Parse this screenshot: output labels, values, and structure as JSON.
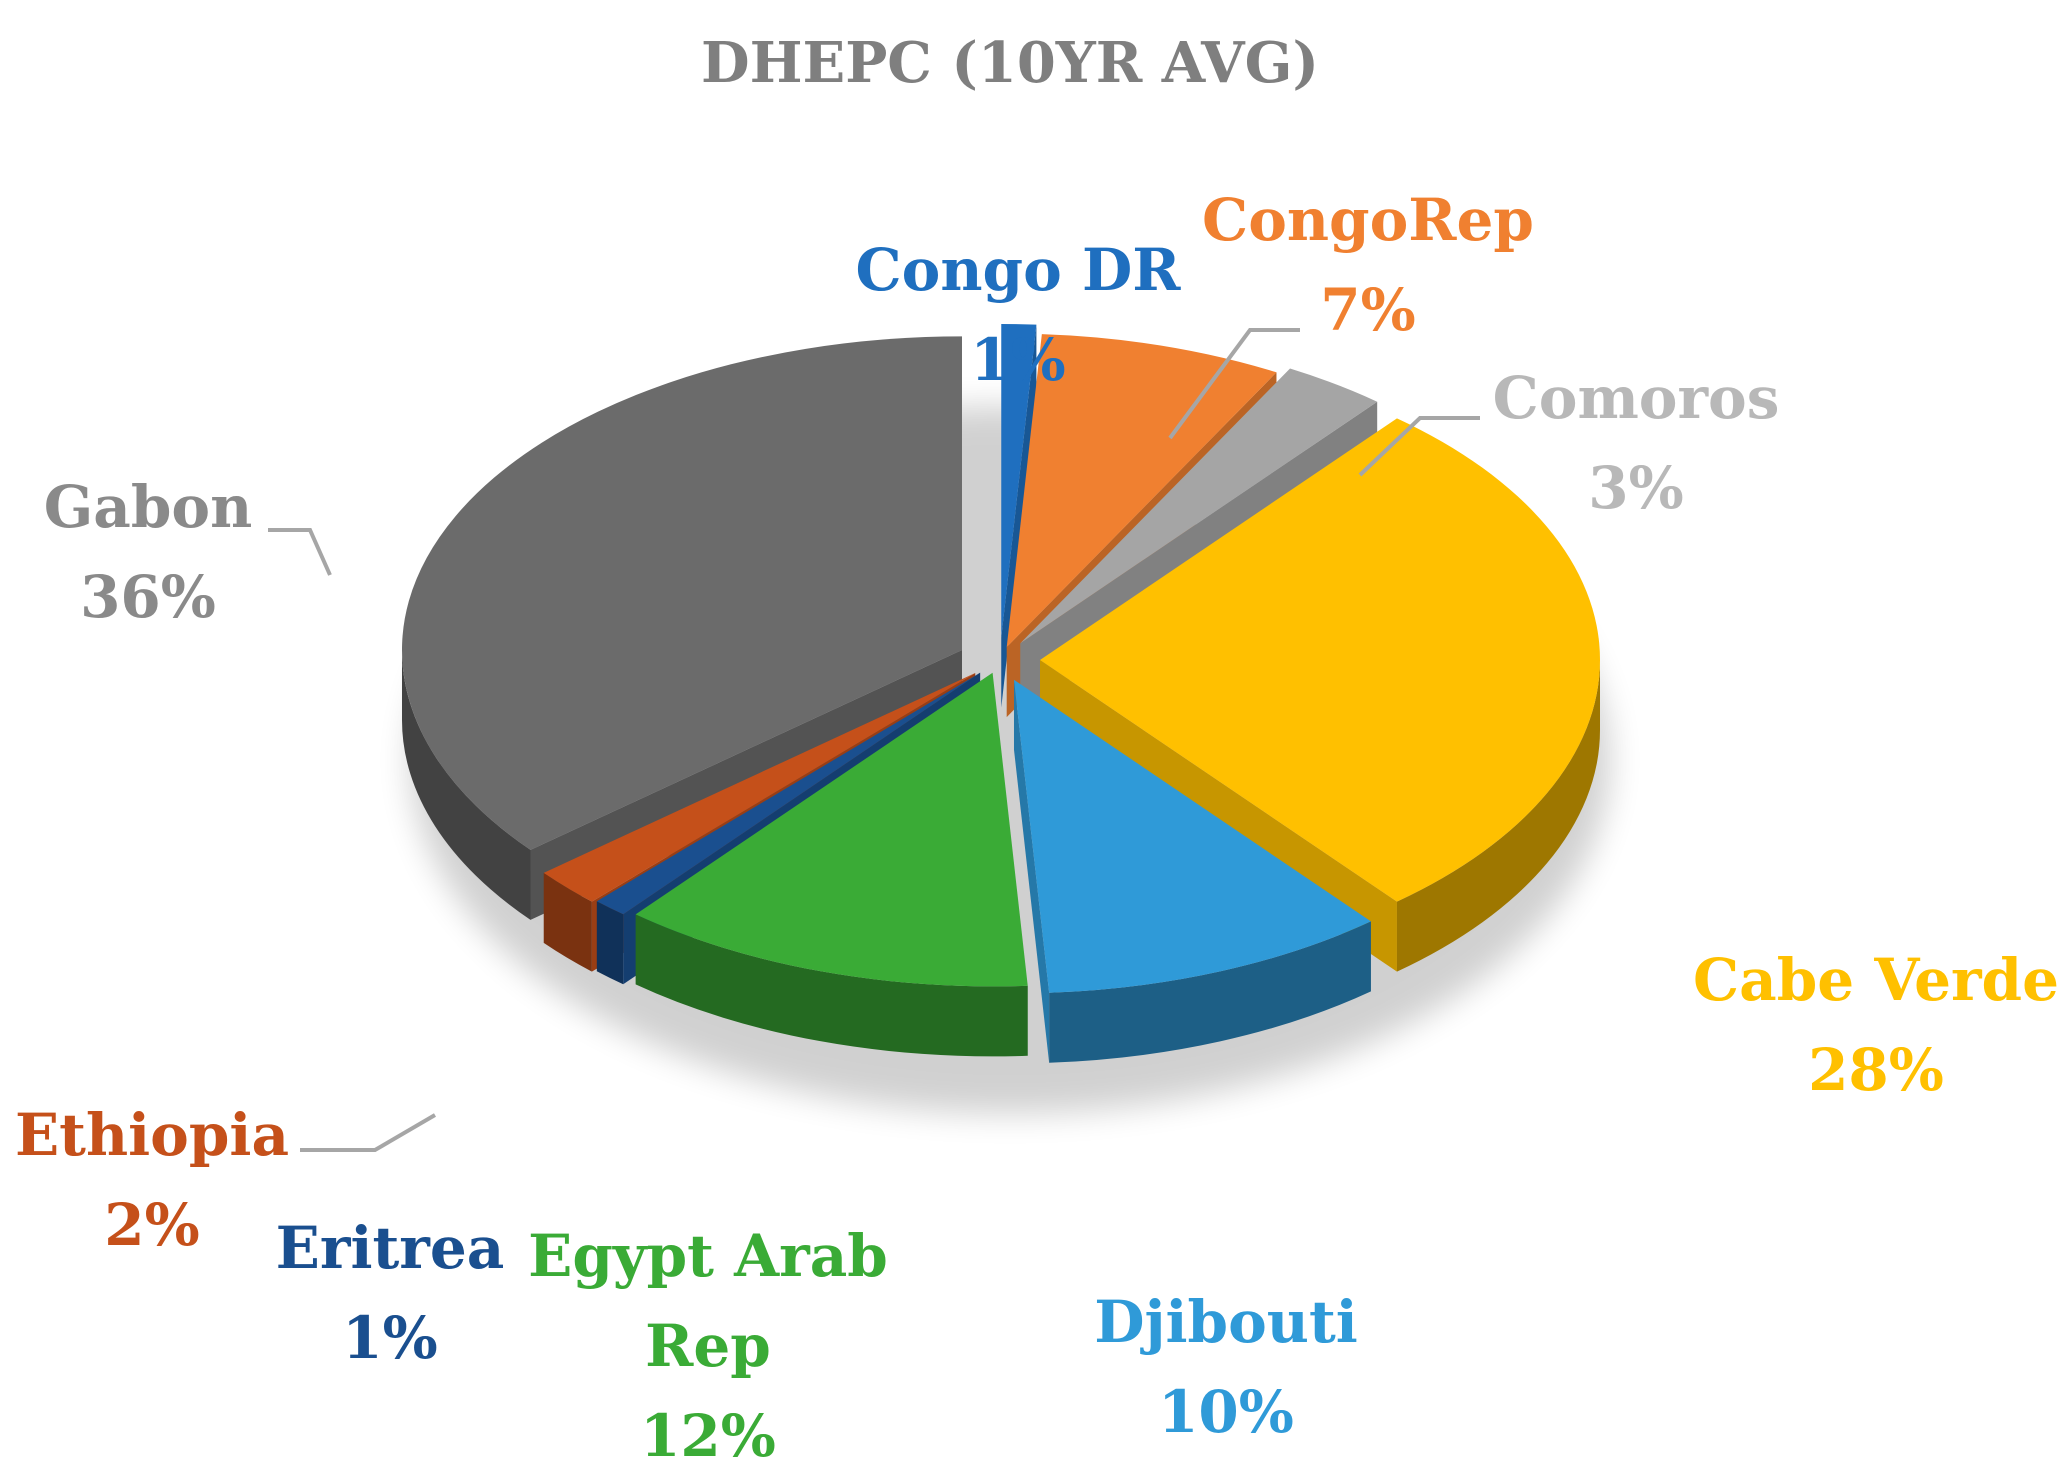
{
  "chart_data": {
    "type": "pie",
    "style": "3d-exploded",
    "title": "DHEPC (10YR AVG)",
    "slices": [
      {
        "name": "Congo DR",
        "value": 1,
        "label": "1%",
        "color": "#1f6fbf"
      },
      {
        "name": "CongoRep",
        "value": 7,
        "label": "7%",
        "color": "#f08030"
      },
      {
        "name": "Comoros",
        "value": 3,
        "label": "3%",
        "color": "#a5a5a5"
      },
      {
        "name": "Cabe Verde",
        "value": 28,
        "label": "28%",
        "color": "#ffc000"
      },
      {
        "name": "Djibouti",
        "value": 10,
        "label": "10%",
        "color": "#2f9ad8"
      },
      {
        "name": "Egypt Arab Rep",
        "value": 12,
        "label": "12%",
        "color": "#3aab36"
      },
      {
        "name": "Eritrea",
        "value": 1,
        "label": "1%",
        "color": "#1a4f8f"
      },
      {
        "name": "Ethiopia",
        "value": 2,
        "label": "2%",
        "color": "#c5501a"
      },
      {
        "name": "Gabon",
        "value": 36,
        "label": "36%",
        "color": "#6b6b6b"
      }
    ],
    "label_colors": {
      "Congo DR": "#1f6fbf",
      "CongoRep": "#f08030",
      "Comoros": "#b8b8b8",
      "Cabe Verde": "#ffc000",
      "Djibouti": "#2f9ad8",
      "Egypt Arab Rep": "#3aab36",
      "Eritrea": "#1a4f8f",
      "Ethiopia": "#c5501a",
      "Gabon": "#8a8a8a"
    },
    "leader_line_color": "#a6a6a6",
    "legend": "none"
  }
}
